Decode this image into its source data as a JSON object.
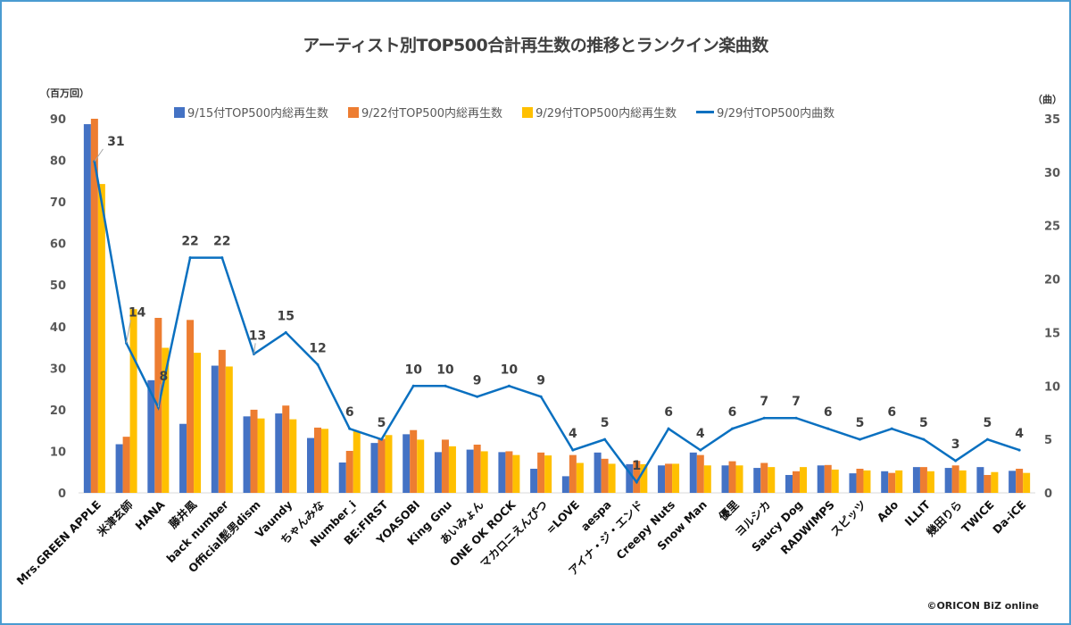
{
  "chart_data": {
    "type": "bar",
    "title": "アーティスト別TOP500合計再生数の推移とランクイン楽曲数",
    "ylabel": "（百万回）",
    "y2label": "（曲）",
    "xlabel": "",
    "ylim": [
      0,
      90
    ],
    "y2lim": [
      0,
      35
    ],
    "yticks": [
      0,
      10,
      20,
      30,
      40,
      50,
      60,
      70,
      80,
      90
    ],
    "y2ticks": [
      0,
      5,
      10,
      15,
      20,
      25,
      30,
      35
    ],
    "grid": false,
    "legend_position": "top",
    "categories": [
      "Mrs.GREEN APPLE",
      "米津玄師",
      "HANA",
      "藤井風",
      "back number",
      "Official髭男dism",
      "Vaundy",
      "ちゃんみな",
      "Number_i",
      "BE:FIRST",
      "YOASOBI",
      "King Gnu",
      "あいみょん",
      "ONE OK ROCK",
      "マカロニえんぴつ",
      "=LOVE",
      "aespa",
      "アイナ・ジ・エンド",
      "Creepy Nuts",
      "Snow Man",
      "優里",
      "ヨルシカ",
      "Saucy Dog",
      "RADWIMPS",
      "スピッツ",
      "Ado",
      "ILLIT",
      "幾田りら",
      "TWICE",
      "Da-iCE"
    ],
    "series": [
      {
        "name": "9/15付TOP500内総再生数",
        "type": "bar",
        "axis": "left",
        "color": "#4472c4",
        "values": [
          88.7,
          11.7,
          27.1,
          16.6,
          30.6,
          18.4,
          19.1,
          13.2,
          7.3,
          12.0,
          14.1,
          9.8,
          10.4,
          9.8,
          5.8,
          4.0,
          9.7,
          6.9,
          6.6,
          9.7,
          6.6,
          6.0,
          4.3,
          6.6,
          4.7,
          5.2,
          6.2,
          6.0,
          6.2,
          5.3
        ]
      },
      {
        "name": "9/22付TOP500内総再生数",
        "type": "bar",
        "axis": "left",
        "color": "#ed7d31",
        "values": [
          90.0,
          13.5,
          42.1,
          41.6,
          34.4,
          20.0,
          21.0,
          15.7,
          10.1,
          13.0,
          15.1,
          12.8,
          11.6,
          10.0,
          9.7,
          9.1,
          8.2,
          7.7,
          7.0,
          9.1,
          7.6,
          7.2,
          5.2,
          6.7,
          5.8,
          4.8,
          6.2,
          6.6,
          4.3,
          5.8
        ]
      },
      {
        "name": "9/29付TOP500内総再生数",
        "type": "bar",
        "axis": "left",
        "color": "#ffc000",
        "values": [
          74.3,
          44.2,
          34.9,
          33.7,
          30.4,
          17.9,
          17.7,
          15.4,
          14.8,
          13.9,
          12.8,
          11.2,
          10.0,
          9.1,
          9.0,
          7.2,
          7.0,
          6.9,
          7.0,
          6.6,
          6.6,
          6.2,
          6.2,
          5.6,
          5.4,
          5.4,
          5.2,
          5.4,
          5.0,
          4.8
        ]
      },
      {
        "name": "9/29付TOP500内曲数",
        "type": "line",
        "axis": "right",
        "color": "#0a70c0",
        "values": [
          31,
          14,
          8,
          22,
          22,
          13,
          15,
          12,
          6,
          5,
          10,
          10,
          9,
          10,
          9,
          4,
          5,
          1,
          6,
          4,
          6,
          7,
          7,
          6,
          5,
          6,
          5,
          3,
          5,
          4
        ]
      }
    ]
  },
  "credit": "©ORICON BiZ online"
}
